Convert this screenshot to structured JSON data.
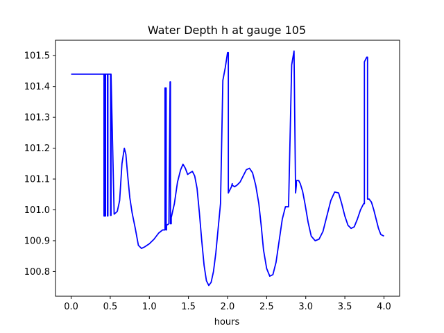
{
  "chart_data": {
    "type": "line",
    "title": "Water Depth h at gauge 105",
    "xlabel": "hours",
    "ylabel": "",
    "xlim": [
      -0.2,
      4.2
    ],
    "ylim": [
      100.72,
      101.55
    ],
    "xticks": [
      0.0,
      0.5,
      1.0,
      1.5,
      2.0,
      2.5,
      3.0,
      3.5,
      4.0
    ],
    "xtick_labels": [
      "0.0",
      "0.5",
      "1.0",
      "1.5",
      "2.0",
      "2.5",
      "3.0",
      "3.5",
      "4.0"
    ],
    "yticks": [
      100.8,
      100.9,
      101.0,
      101.1,
      101.2,
      101.3,
      101.4,
      101.5
    ],
    "ytick_labels": [
      "100.8",
      "100.9",
      "101.0",
      "101.1",
      "101.2",
      "101.3",
      "101.4",
      "101.5"
    ],
    "grid": false,
    "legend": "none",
    "series": [
      {
        "color": "#0000ff",
        "x": [
          0.0,
          0.42,
          0.42,
          0.425,
          0.425,
          0.435,
          0.435,
          0.44,
          0.44,
          0.465,
          0.465,
          0.47,
          0.47,
          0.505,
          0.505,
          0.51,
          0.51,
          0.55,
          0.59,
          0.62,
          0.65,
          0.68,
          0.7,
          0.72,
          0.75,
          0.78,
          0.82,
          0.86,
          0.9,
          0.94,
          1.0,
          1.06,
          1.12,
          1.17,
          1.2,
          1.2,
          1.215,
          1.215,
          1.22,
          1.22,
          1.25,
          1.265,
          1.27,
          1.27,
          1.28,
          1.28,
          1.32,
          1.36,
          1.4,
          1.43,
          1.46,
          1.49,
          1.52,
          1.55,
          1.58,
          1.61,
          1.64,
          1.67,
          1.7,
          1.73,
          1.76,
          1.79,
          1.82,
          1.85,
          1.88,
          1.91,
          1.94,
          1.97,
          2.0,
          2.01,
          2.01,
          2.05,
          2.06,
          2.06,
          2.09,
          2.12,
          2.16,
          2.2,
          2.24,
          2.28,
          2.32,
          2.36,
          2.4,
          2.43,
          2.46,
          2.5,
          2.54,
          2.58,
          2.62,
          2.66,
          2.7,
          2.74,
          2.78,
          2.82,
          2.85,
          2.85,
          2.87,
          2.88,
          2.88,
          2.91,
          2.93,
          2.96,
          2.99,
          3.03,
          3.07,
          3.12,
          3.17,
          3.22,
          3.27,
          3.32,
          3.37,
          3.42,
          3.46,
          3.5,
          3.54,
          3.58,
          3.62,
          3.66,
          3.7,
          3.74,
          3.75,
          3.75,
          3.78,
          3.79,
          3.79,
          3.81,
          3.84,
          3.87,
          3.9,
          3.93,
          3.96,
          4.0
        ],
        "y": [
          101.44,
          101.44,
          100.98,
          100.98,
          101.44,
          101.44,
          100.98,
          100.98,
          101.44,
          101.44,
          100.98,
          100.98,
          101.44,
          101.44,
          100.982,
          100.982,
          101.44,
          100.986,
          100.995,
          101.03,
          101.15,
          101.2,
          101.18,
          101.12,
          101.04,
          100.99,
          100.94,
          100.885,
          100.875,
          100.88,
          100.89,
          100.905,
          100.925,
          100.935,
          100.935,
          101.395,
          101.395,
          100.935,
          100.935,
          100.95,
          100.955,
          101.415,
          101.415,
          100.955,
          100.955,
          100.975,
          101.02,
          101.09,
          101.13,
          101.148,
          101.135,
          101.115,
          101.12,
          101.125,
          101.11,
          101.07,
          100.99,
          100.9,
          100.82,
          100.77,
          100.755,
          100.765,
          100.8,
          100.86,
          100.94,
          101.02,
          101.42,
          101.46,
          101.51,
          101.51,
          101.055,
          101.075,
          101.085,
          101.08,
          101.075,
          101.08,
          101.09,
          101.11,
          101.13,
          101.135,
          101.12,
          101.08,
          101.02,
          100.95,
          100.87,
          100.81,
          100.785,
          100.79,
          100.83,
          100.9,
          100.97,
          101.01,
          101.01,
          101.47,
          101.515,
          101.515,
          101.055,
          101.08,
          101.095,
          101.095,
          101.085,
          101.06,
          101.02,
          100.96,
          100.915,
          100.9,
          100.905,
          100.93,
          100.98,
          101.03,
          101.058,
          101.055,
          101.02,
          100.98,
          100.95,
          100.94,
          100.945,
          100.97,
          101.0,
          101.02,
          101.02,
          101.48,
          101.495,
          101.495,
          101.035,
          101.035,
          101.025,
          101.0,
          100.97,
          100.94,
          100.92,
          100.915
        ]
      }
    ]
  }
}
